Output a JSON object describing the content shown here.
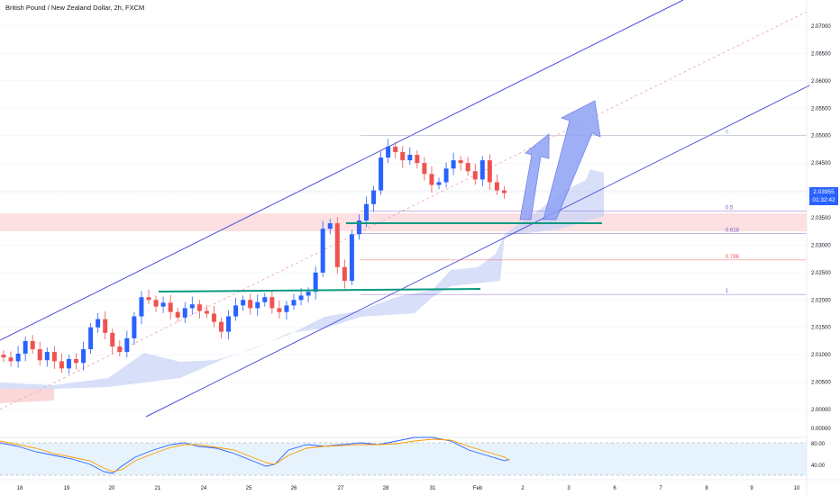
{
  "header": {
    "title": "British Pound / New Zealand Dollar, 2h, FXCM"
  },
  "price_axis": {
    "ticks": [
      "2.07000",
      "2.06500",
      "2.06000",
      "2.05500",
      "2.05000",
      "2.04500",
      "2.04000",
      "2.03500",
      "2.03000",
      "2.02500",
      "2.02000",
      "2.01500",
      "2.01000",
      "2.00500",
      "2.00000",
      "0.00000"
    ],
    "current_price": "2.03955",
    "countdown": "01:32:42"
  },
  "oscillator_axis": {
    "ticks": [
      "80.00",
      "40.00"
    ]
  },
  "time_axis": {
    "labels": [
      "18",
      "19",
      "20",
      "21",
      "24",
      "25",
      "26",
      "27",
      "28",
      "31",
      "Feb",
      "2",
      "3",
      "6",
      "7",
      "8",
      "9",
      "10"
    ]
  },
  "fibonacci": {
    "levels": [
      {
        "label": "0",
        "value": 2.05,
        "color": "#9aa0b8"
      },
      {
        "label": "0.5",
        "value": 2.0362,
        "color": "#7e57c2"
      },
      {
        "label": "0.618",
        "value": 2.0321,
        "color": "#7e57c2"
      },
      {
        "label": "0.786",
        "value": 2.0273,
        "color": "#ef5350"
      },
      {
        "label": "1",
        "value": 2.021,
        "color": "#7e57c2"
      }
    ]
  },
  "colors": {
    "bull": "#2962ff",
    "bear": "#ef5350",
    "channel": "#4a4fd8",
    "green_line": "#089981",
    "cloud": "#c8d1f7",
    "zone": "#fbd5d8",
    "arrow": "#8fa2f5"
  },
  "chart_data": {
    "type": "candlestick",
    "symbol": "British Pound / New Zealand Dollar, 2h, FXCM",
    "ylim": [
      2.0,
      2.0725
    ],
    "close_series": [
      2.0095,
      2.0088,
      2.0102,
      2.0125,
      2.011,
      2.009,
      2.0105,
      2.0088,
      2.0075,
      2.0092,
      2.0085,
      2.011,
      2.015,
      2.0165,
      2.014,
      2.0115,
      2.0105,
      2.013,
      2.017,
      2.0205,
      2.02,
      2.0188,
      2.0195,
      2.0178,
      2.0168,
      2.0185,
      2.0192,
      2.018,
      2.0175,
      2.016,
      2.0142,
      2.017,
      2.019,
      2.02,
      2.0185,
      2.0196,
      2.0205,
      2.0185,
      2.0178,
      2.019,
      2.02,
      2.0208,
      2.0215,
      2.025,
      2.033,
      2.034,
      2.026,
      2.0235,
      2.032,
      2.0345,
      2.0375,
      2.04,
      2.046,
      2.048,
      2.047,
      2.0455,
      2.0465,
      2.045,
      2.043,
      2.041,
      2.0415,
      2.044,
      2.0455,
      2.045,
      2.0435,
      2.042,
      2.0455,
      2.0415,
      2.04,
      2.0395
    ]
  }
}
